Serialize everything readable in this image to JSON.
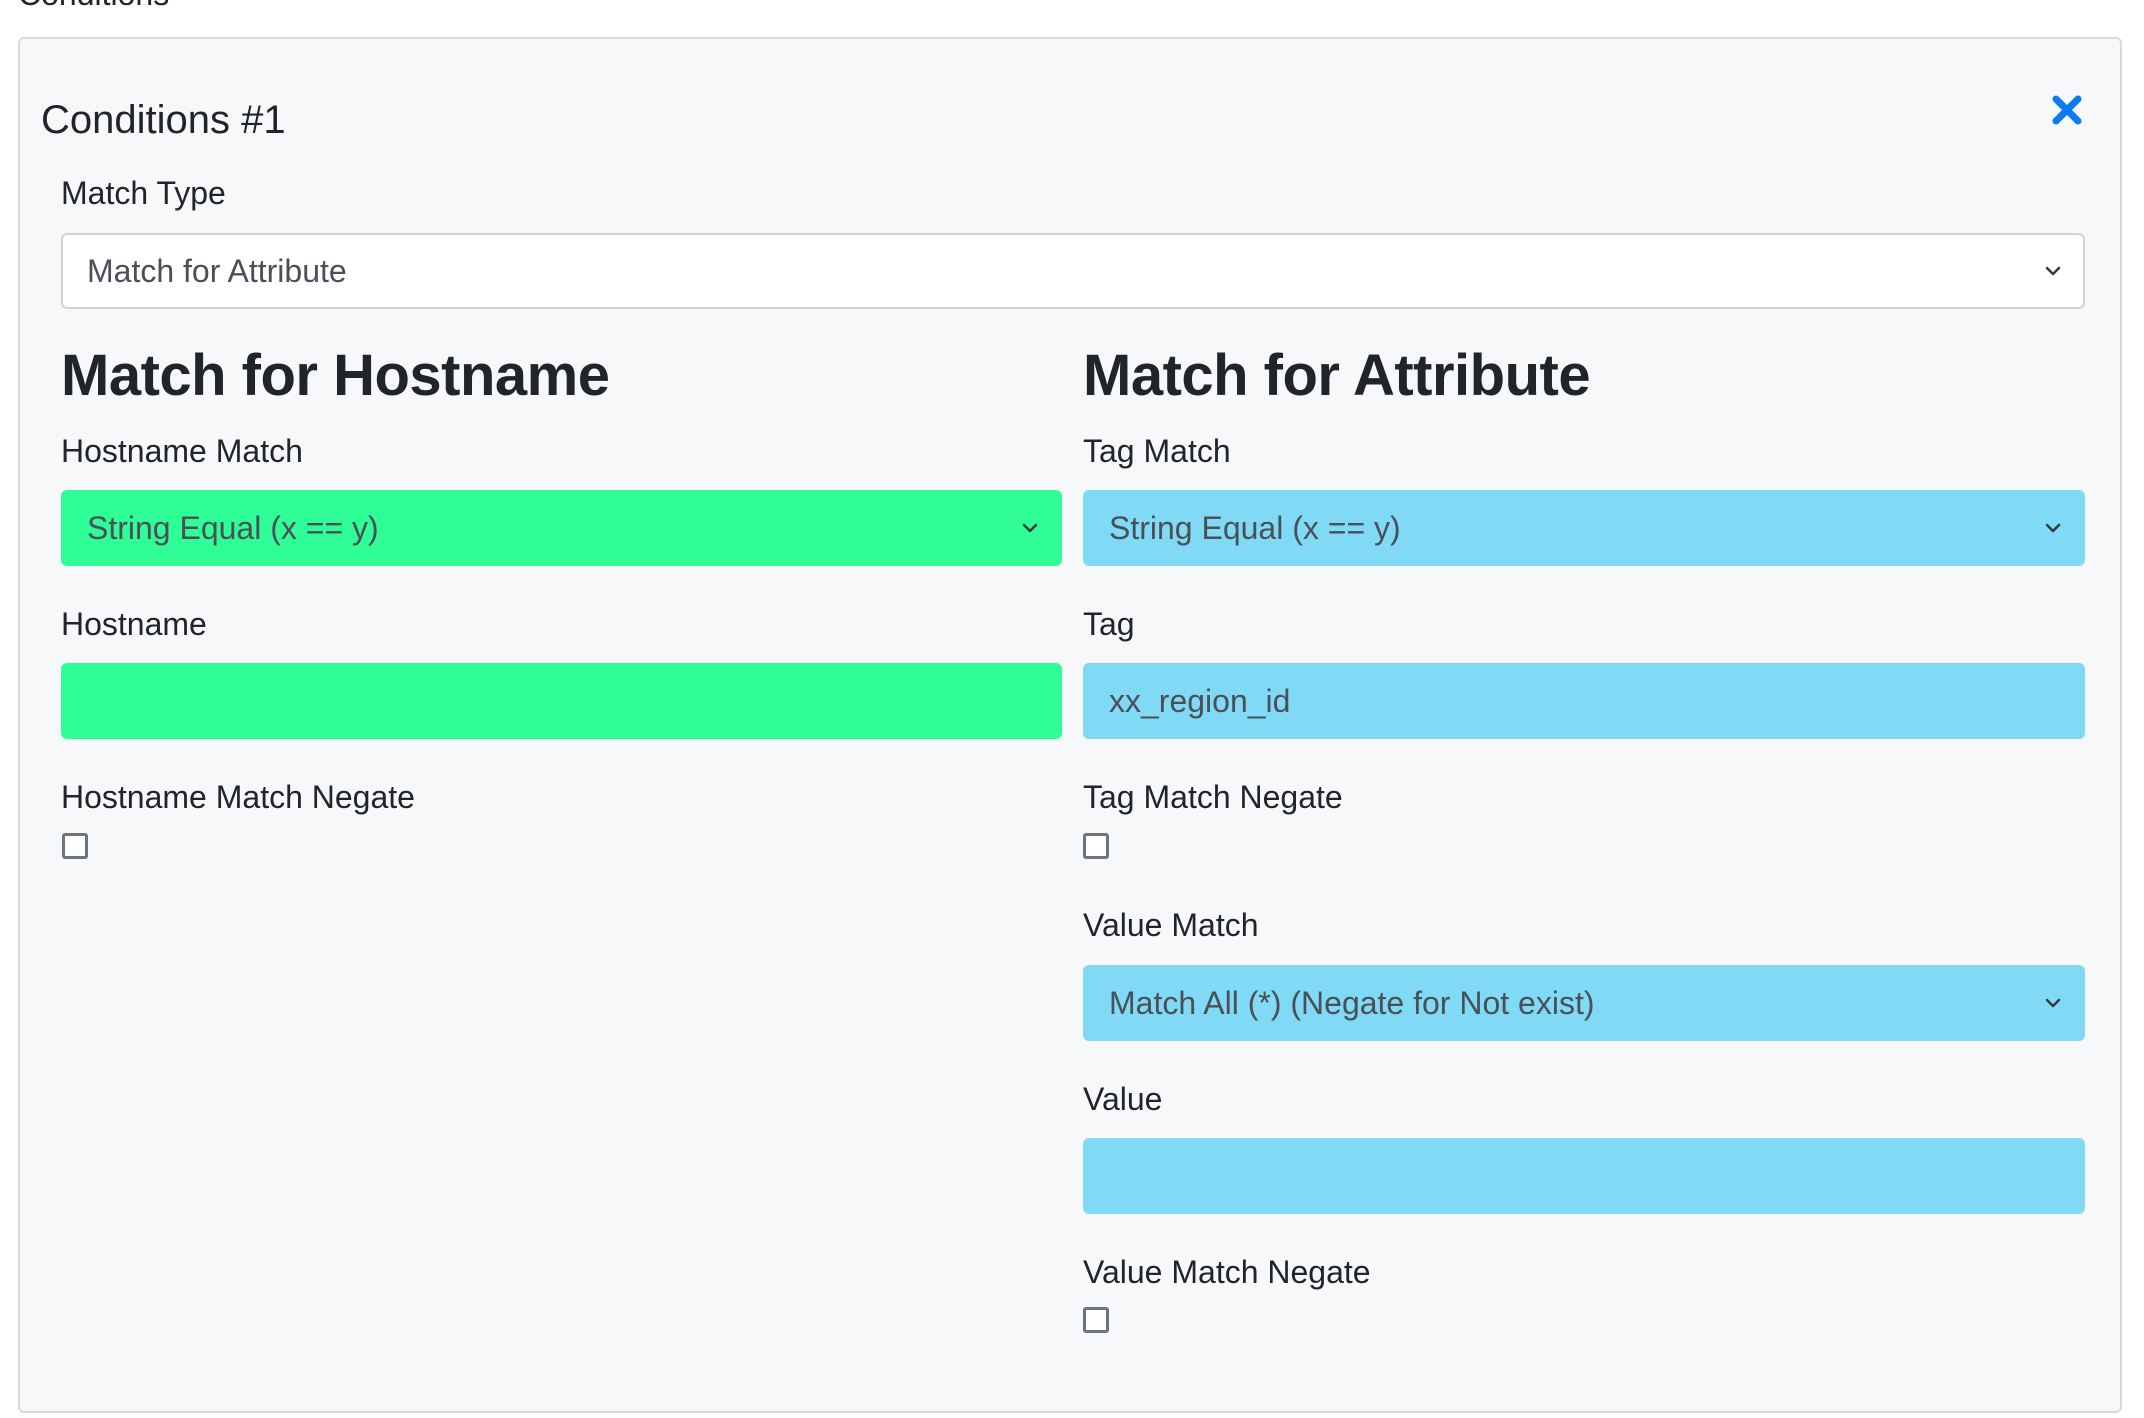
{
  "section": {
    "title": "Conditions"
  },
  "card": {
    "title": "Conditions #1",
    "close_icon": "close-x-icon",
    "close_color": "#0b7bf2"
  },
  "match_type": {
    "label": "Match Type",
    "selected": "Match for Attribute"
  },
  "hostname_panel": {
    "heading": "Match for Hostname",
    "match_label": "Hostname Match",
    "match_selected": "String Equal (x == y)",
    "hostname_label": "Hostname",
    "hostname_value": "",
    "negate_label": "Hostname Match Negate",
    "negate_checked": false,
    "accent": "#2ffe96"
  },
  "attribute_panel": {
    "heading": "Match for Attribute",
    "tag_match_label": "Tag Match",
    "tag_match_selected": "String Equal (x == y)",
    "tag_label": "Tag",
    "tag_value": "xx_region_id",
    "tag_negate_label": "Tag Match Negate",
    "tag_negate_checked": false,
    "value_match_label": "Value Match",
    "value_match_selected": "Match All (*) (Negate for Not exist)",
    "value_label": "Value",
    "value_value": "",
    "value_negate_label": "Value Match Negate",
    "value_negate_checked": false,
    "accent": "#80d9f5"
  }
}
